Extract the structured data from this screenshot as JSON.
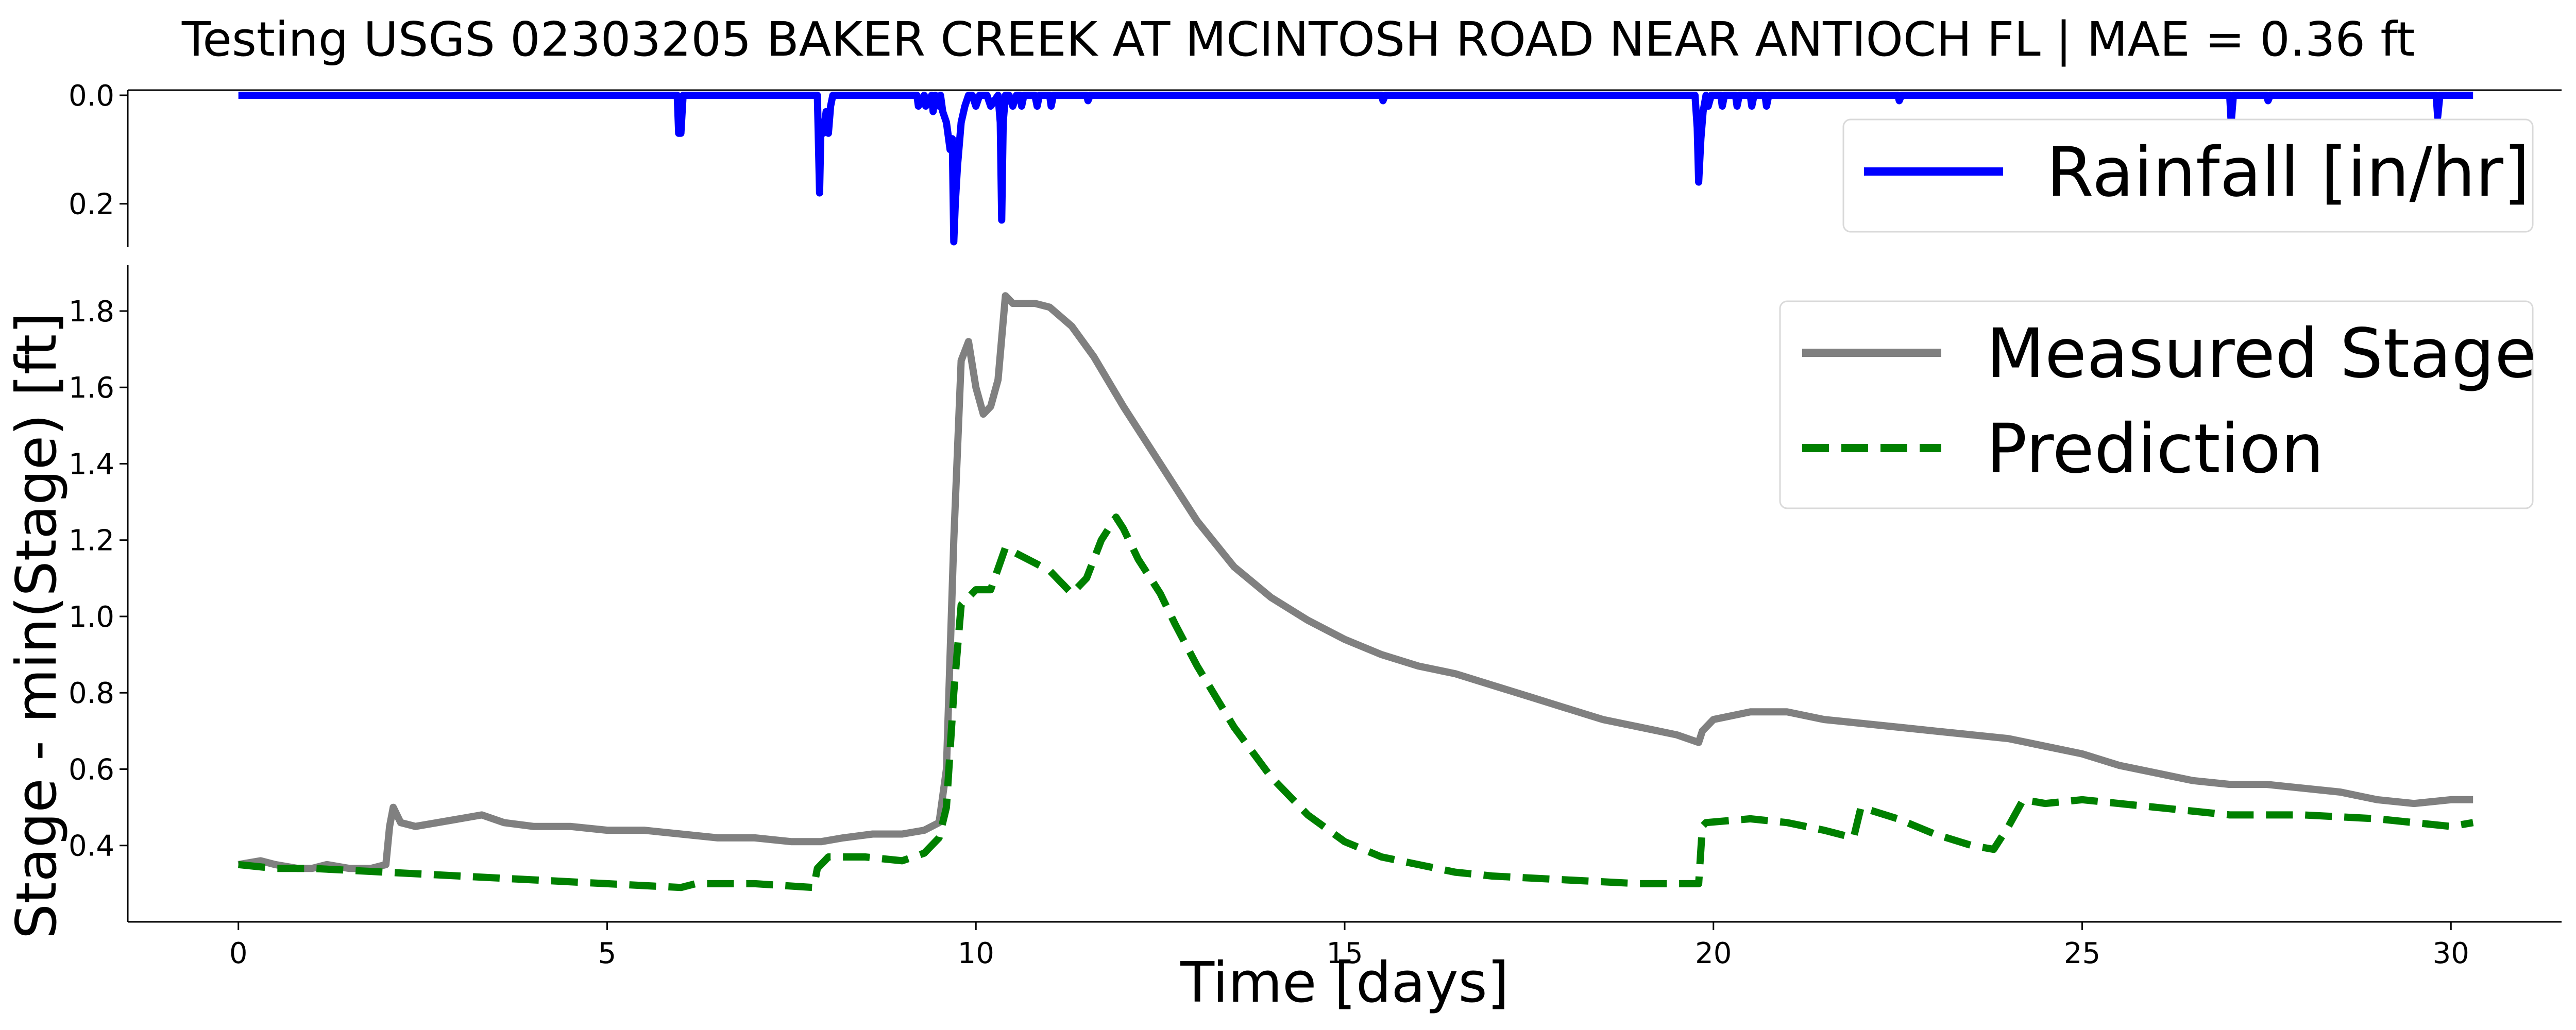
{
  "title": "Testing USGS 02303205 BAKER CREEK AT MCINTOSH ROAD NEAR ANTIOCH FL | MAE = 0.36 ft",
  "chart_data": [
    {
      "type": "line",
      "panel": "rainfall",
      "ylim": [
        0.0,
        0.28
      ],
      "y_inverted": true,
      "yticks": [
        "0.0",
        "0.2"
      ],
      "ytick_values": [
        0.0,
        0.2
      ],
      "xlim": [
        -1.5,
        31.5
      ],
      "legend_position": "upper right",
      "grid": false,
      "series": [
        {
          "name": "Rainfall [in/hr]",
          "color": "#0000ff",
          "style": "solid",
          "x": [
            0.0,
            5.95,
            5.97,
            6.0,
            6.03,
            7.85,
            7.88,
            7.9,
            7.93,
            7.97,
            8.0,
            8.03,
            8.06,
            9.2,
            9.22,
            9.3,
            9.32,
            9.4,
            9.42,
            9.45,
            9.5,
            9.52,
            9.55,
            9.6,
            9.65,
            9.68,
            9.7,
            9.72,
            9.75,
            9.8,
            9.85,
            9.9,
            9.95,
            10.0,
            10.05,
            10.15,
            10.2,
            10.3,
            10.33,
            10.35,
            10.37,
            10.4,
            10.45,
            10.5,
            10.55,
            10.6,
            10.62,
            10.65,
            10.8,
            10.83,
            10.86,
            11.0,
            11.02,
            11.05,
            11.5,
            11.52,
            11.55,
            15.5,
            15.52,
            15.55,
            19.75,
            19.78,
            19.8,
            19.83,
            19.86,
            19.9,
            19.93,
            19.97,
            20.1,
            20.12,
            20.15,
            20.3,
            20.32,
            20.35,
            20.5,
            20.52,
            20.55,
            20.7,
            20.72,
            20.75,
            22.5,
            22.52,
            22.55,
            27.0,
            27.02,
            27.05,
            27.5,
            27.52,
            27.55,
            29.8,
            29.82,
            29.85,
            30.2,
            30.3
          ],
          "y": [
            0.0,
            0.0,
            0.07,
            0.07,
            0.0,
            0.0,
            0.18,
            0.05,
            0.07,
            0.03,
            0.07,
            0.02,
            0.0,
            0.0,
            0.02,
            0.0,
            0.02,
            0.0,
            0.03,
            0.0,
            0.02,
            0.0,
            0.03,
            0.05,
            0.1,
            0.08,
            0.27,
            0.2,
            0.13,
            0.05,
            0.02,
            0.0,
            0.0,
            0.02,
            0.0,
            0.0,
            0.02,
            0.0,
            0.05,
            0.23,
            0.05,
            0.0,
            0.0,
            0.02,
            0.0,
            0.0,
            0.02,
            0.0,
            0.0,
            0.02,
            0.0,
            0.0,
            0.02,
            0.0,
            0.0,
            0.01,
            0.0,
            0.0,
            0.01,
            0.0,
            0.0,
            0.06,
            0.16,
            0.08,
            0.03,
            0.0,
            0.02,
            0.0,
            0.0,
            0.02,
            0.0,
            0.0,
            0.02,
            0.0,
            0.0,
            0.02,
            0.0,
            0.0,
            0.02,
            0.0,
            0.0,
            0.01,
            0.0,
            0.0,
            0.05,
            0.0,
            0.0,
            0.01,
            0.0,
            0.0,
            0.04,
            0.0,
            0.0,
            0.0
          ]
        }
      ]
    },
    {
      "type": "line",
      "panel": "stage",
      "xlabel": "Time [days]",
      "ylabel": "Stage - min(Stage) [ft]",
      "xlim": [
        -1.5,
        31.5
      ],
      "ylim": [
        0.2,
        1.92
      ],
      "xticks": [
        "0",
        "5",
        "10",
        "15",
        "20",
        "25",
        "30"
      ],
      "xtick_values": [
        0,
        5,
        10,
        15,
        20,
        25,
        30
      ],
      "yticks": [
        "0.4",
        "0.6",
        "0.8",
        "1.0",
        "1.2",
        "1.4",
        "1.6",
        "1.8"
      ],
      "ytick_values": [
        0.4,
        0.6,
        0.8,
        1.0,
        1.2,
        1.4,
        1.6,
        1.8
      ],
      "legend_position": "upper right",
      "grid": false,
      "series": [
        {
          "name": "Measured Stage",
          "color": "#808080",
          "style": "solid",
          "x": [
            0.0,
            0.3,
            0.5,
            0.8,
            1.0,
            1.2,
            1.5,
            1.8,
            2.0,
            2.05,
            2.1,
            2.2,
            2.4,
            2.7,
            3.0,
            3.3,
            3.6,
            4.0,
            4.5,
            5.0,
            5.5,
            6.0,
            6.5,
            7.0,
            7.5,
            7.9,
            8.2,
            8.6,
            9.0,
            9.3,
            9.5,
            9.6,
            9.7,
            9.8,
            9.9,
            10.0,
            10.1,
            10.2,
            10.3,
            10.4,
            10.5,
            10.8,
            11.0,
            11.3,
            11.6,
            12.0,
            12.5,
            13.0,
            13.5,
            14.0,
            14.5,
            15.0,
            15.5,
            16.0,
            16.5,
            17.0,
            17.5,
            18.0,
            18.5,
            19.0,
            19.5,
            19.8,
            19.85,
            20.0,
            20.5,
            21.0,
            21.5,
            22.0,
            22.5,
            23.0,
            23.5,
            24.0,
            24.5,
            25.0,
            25.5,
            26.0,
            26.5,
            27.0,
            27.5,
            28.0,
            28.5,
            29.0,
            29.5,
            30.0,
            30.3
          ],
          "y": [
            0.35,
            0.36,
            0.35,
            0.34,
            0.34,
            0.35,
            0.34,
            0.34,
            0.35,
            0.45,
            0.5,
            0.46,
            0.45,
            0.46,
            0.47,
            0.48,
            0.46,
            0.45,
            0.45,
            0.44,
            0.44,
            0.43,
            0.42,
            0.42,
            0.41,
            0.41,
            0.42,
            0.43,
            0.43,
            0.44,
            0.46,
            0.6,
            1.2,
            1.67,
            1.72,
            1.6,
            1.53,
            1.55,
            1.62,
            1.84,
            1.82,
            1.82,
            1.81,
            1.76,
            1.68,
            1.55,
            1.4,
            1.25,
            1.13,
            1.05,
            0.99,
            0.94,
            0.9,
            0.87,
            0.85,
            0.82,
            0.79,
            0.76,
            0.73,
            0.71,
            0.69,
            0.67,
            0.7,
            0.73,
            0.75,
            0.75,
            0.73,
            0.72,
            0.71,
            0.7,
            0.69,
            0.68,
            0.66,
            0.64,
            0.61,
            0.59,
            0.57,
            0.56,
            0.56,
            0.55,
            0.54,
            0.52,
            0.51,
            0.52,
            0.52
          ]
        },
        {
          "name": "Prediction",
          "color": "#008000",
          "style": "dashed",
          "x": [
            0.0,
            0.5,
            1.0,
            2.0,
            3.0,
            4.0,
            5.0,
            6.0,
            6.2,
            7.0,
            7.8,
            7.85,
            8.0,
            8.5,
            9.0,
            9.3,
            9.5,
            9.6,
            9.7,
            9.8,
            10.0,
            10.2,
            10.4,
            10.5,
            10.8,
            11.0,
            11.3,
            11.5,
            11.7,
            11.9,
            12.0,
            12.2,
            12.5,
            12.7,
            13.0,
            13.5,
            14.0,
            14.5,
            15.0,
            15.5,
            16.0,
            16.5,
            17.0,
            18.0,
            19.0,
            19.8,
            19.85,
            19.9,
            20.5,
            21.0,
            21.5,
            21.9,
            22.0,
            22.5,
            23.0,
            23.5,
            23.8,
            24.0,
            24.2,
            24.5,
            25.0,
            26.0,
            27.0,
            28.0,
            29.0,
            30.0,
            30.3
          ],
          "y": [
            0.35,
            0.34,
            0.34,
            0.33,
            0.32,
            0.31,
            0.3,
            0.29,
            0.3,
            0.3,
            0.29,
            0.34,
            0.37,
            0.37,
            0.36,
            0.38,
            0.42,
            0.5,
            0.8,
            1.03,
            1.07,
            1.07,
            1.18,
            1.17,
            1.14,
            1.12,
            1.06,
            1.1,
            1.2,
            1.26,
            1.23,
            1.15,
            1.06,
            0.98,
            0.87,
            0.71,
            0.58,
            0.48,
            0.41,
            0.37,
            0.35,
            0.33,
            0.32,
            0.31,
            0.3,
            0.3,
            0.45,
            0.46,
            0.47,
            0.46,
            0.44,
            0.42,
            0.5,
            0.47,
            0.43,
            0.4,
            0.39,
            0.45,
            0.52,
            0.51,
            0.52,
            0.5,
            0.48,
            0.48,
            0.47,
            0.45,
            0.46
          ]
        }
      ]
    }
  ]
}
